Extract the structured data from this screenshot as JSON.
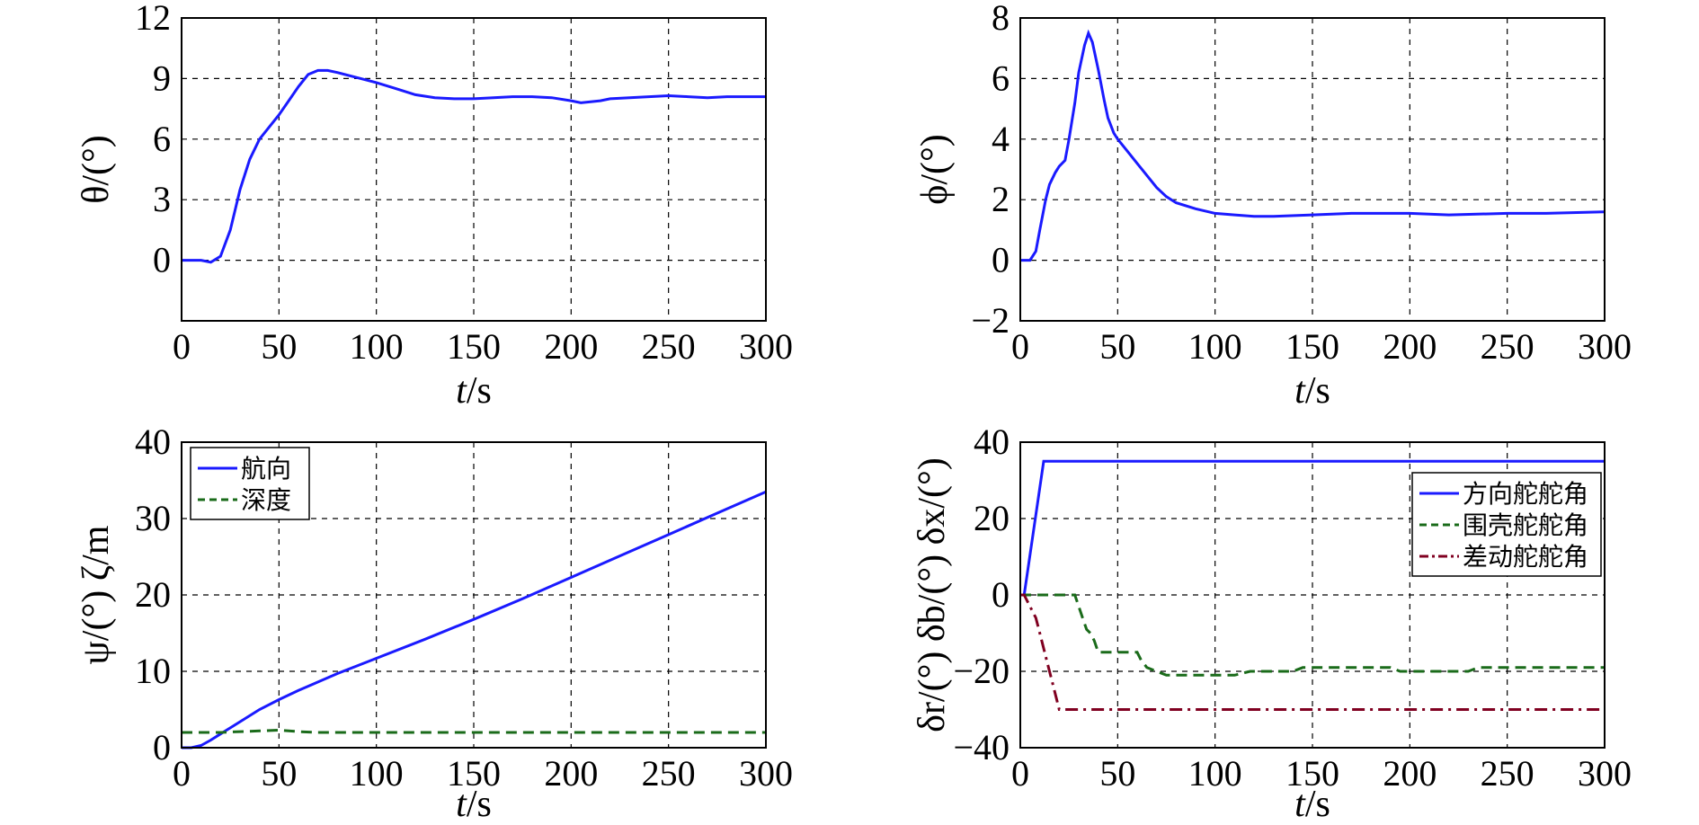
{
  "chart_data": [
    {
      "id": "theta",
      "type": "line",
      "xlabel": "t/s",
      "xlabel_italic": "t",
      "xlabel_unit": "/s",
      "ylabel": "θ/(°)",
      "xlim": [
        0,
        300
      ],
      "ylim": [
        -3,
        12
      ],
      "xticks": [
        0,
        50,
        100,
        150,
        200,
        250,
        300
      ],
      "yticks": [
        0,
        3,
        6,
        9,
        12
      ],
      "grid": true,
      "series": [
        {
          "name": "θ",
          "color": "#1a1aff",
          "style": "solid",
          "x": [
            0,
            10,
            15,
            20,
            25,
            30,
            35,
            40,
            45,
            50,
            55,
            60,
            65,
            70,
            75,
            80,
            90,
            100,
            110,
            120,
            130,
            140,
            150,
            160,
            170,
            180,
            190,
            200,
            205,
            210,
            215,
            220,
            230,
            240,
            250,
            260,
            270,
            280,
            290,
            300
          ],
          "y": [
            0,
            0,
            -0.1,
            0.2,
            1.5,
            3.5,
            5,
            6,
            6.6,
            7.2,
            7.9,
            8.6,
            9.2,
            9.4,
            9.4,
            9.3,
            9.05,
            8.8,
            8.5,
            8.2,
            8.05,
            8.0,
            8.0,
            8.05,
            8.1,
            8.1,
            8.05,
            7.9,
            7.8,
            7.85,
            7.9,
            8.0,
            8.05,
            8.1,
            8.15,
            8.1,
            8.05,
            8.1,
            8.1,
            8.1
          ]
        }
      ]
    },
    {
      "id": "phi",
      "type": "line",
      "xlabel": "t/s",
      "xlabel_italic": "t",
      "xlabel_unit": "/s",
      "ylabel": "ϕ/(°)",
      "xlim": [
        0,
        300
      ],
      "ylim": [
        -2,
        8
      ],
      "xticks": [
        0,
        50,
        100,
        150,
        200,
        250,
        300
      ],
      "yticks": [
        -2,
        0,
        2,
        4,
        6,
        8
      ],
      "ytick_labels": [
        "−2",
        "0",
        "2",
        "4",
        "6",
        "8"
      ],
      "grid": true,
      "series": [
        {
          "name": "ϕ",
          "color": "#1a1aff",
          "style": "solid",
          "x": [
            0,
            5,
            8,
            10,
            13,
            15,
            18,
            20,
            23,
            25,
            28,
            30,
            33,
            35,
            37,
            40,
            43,
            45,
            48,
            50,
            55,
            60,
            65,
            70,
            75,
            80,
            90,
            100,
            110,
            120,
            130,
            150,
            170,
            200,
            220,
            250,
            270,
            300
          ],
          "y": [
            0,
            0,
            0.3,
            1,
            2,
            2.5,
            2.9,
            3.1,
            3.3,
            4,
            5.2,
            6.2,
            7.1,
            7.5,
            7.2,
            6.3,
            5.3,
            4.7,
            4.2,
            4.0,
            3.6,
            3.2,
            2.8,
            2.4,
            2.1,
            1.9,
            1.7,
            1.55,
            1.5,
            1.45,
            1.45,
            1.5,
            1.55,
            1.55,
            1.5,
            1.55,
            1.55,
            1.6
          ]
        }
      ]
    },
    {
      "id": "psi_zeta",
      "type": "line",
      "xlabel": "t/s",
      "xlabel_italic": "t",
      "xlabel_unit": "/s",
      "ylabel": "ψ/(°) ζ/m",
      "xlim": [
        0,
        300
      ],
      "ylim": [
        0,
        40
      ],
      "xticks": [
        0,
        50,
        100,
        150,
        200,
        250,
        300
      ],
      "yticks": [
        0,
        10,
        20,
        30,
        40
      ],
      "grid": true,
      "legend": {
        "placement": "top-left"
      },
      "series": [
        {
          "name": "航向",
          "color": "#1a1aff",
          "style": "solid",
          "x": [
            0,
            5,
            10,
            15,
            20,
            25,
            30,
            40,
            50,
            60,
            70,
            80,
            90,
            100,
            125,
            150,
            175,
            200,
            225,
            250,
            275,
            300
          ],
          "y": [
            0,
            0,
            0.3,
            1,
            1.8,
            2.6,
            3.4,
            5,
            6.3,
            7.5,
            8.6,
            9.7,
            10.7,
            11.7,
            14.2,
            16.8,
            19.5,
            22.3,
            25.1,
            27.9,
            30.7,
            33.5
          ]
        },
        {
          "name": "深度",
          "color": "#1a6b1a",
          "style": "dashed",
          "x": [
            0,
            20,
            30,
            40,
            50,
            55,
            60,
            70,
            100,
            150,
            200,
            250,
            300
          ],
          "y": [
            2,
            2,
            2.1,
            2.2,
            2.3,
            2.2,
            2.1,
            2,
            2,
            2,
            2,
            2,
            2
          ]
        }
      ]
    },
    {
      "id": "rudders",
      "type": "line",
      "xlabel": "t/s",
      "xlabel_italic": "t",
      "xlabel_unit": "/s",
      "ylabel": "δr/(°) δb/(°) δx/(°)",
      "xlim": [
        0,
        300
      ],
      "ylim": [
        -40,
        40
      ],
      "xticks": [
        0,
        50,
        100,
        150,
        200,
        250,
        300
      ],
      "yticks": [
        -40,
        -20,
        0,
        20,
        40
      ],
      "ytick_labels": [
        "−40",
        "−20",
        "0",
        "20",
        "40"
      ],
      "grid": true,
      "legend": {
        "placement": "top-right"
      },
      "series": [
        {
          "name": "方向舵舵角",
          "color": "#1a1aff",
          "style": "solid",
          "x": [
            0,
            2,
            12,
            300
          ],
          "y": [
            0,
            0,
            35,
            35
          ]
        },
        {
          "name": "围壳舵舵角",
          "color": "#1a6b1a",
          "style": "dashed",
          "x": [
            0,
            28,
            30,
            32,
            34,
            36,
            38,
            40,
            60,
            62,
            65,
            70,
            75,
            80,
            110,
            118,
            120,
            140,
            145,
            150,
            190,
            195,
            200,
            230,
            235,
            240,
            300
          ],
          "y": [
            0,
            0,
            -3,
            -6,
            -9,
            -10,
            -12,
            -15,
            -15,
            -17,
            -19,
            -20,
            -21,
            -21,
            -21,
            -20,
            -20,
            -20,
            -19,
            -19,
            -19,
            -20,
            -20,
            -20,
            -19,
            -19,
            -19
          ]
        },
        {
          "name": "差动舵舵角",
          "color": "#800020",
          "style": "dashdot",
          "x": [
            0,
            2,
            5,
            8,
            10,
            12,
            14,
            16,
            18,
            20,
            300
          ],
          "y": [
            0,
            0,
            -3,
            -6,
            -10,
            -14,
            -18,
            -22,
            -26,
            -30,
            -30
          ]
        }
      ]
    }
  ]
}
